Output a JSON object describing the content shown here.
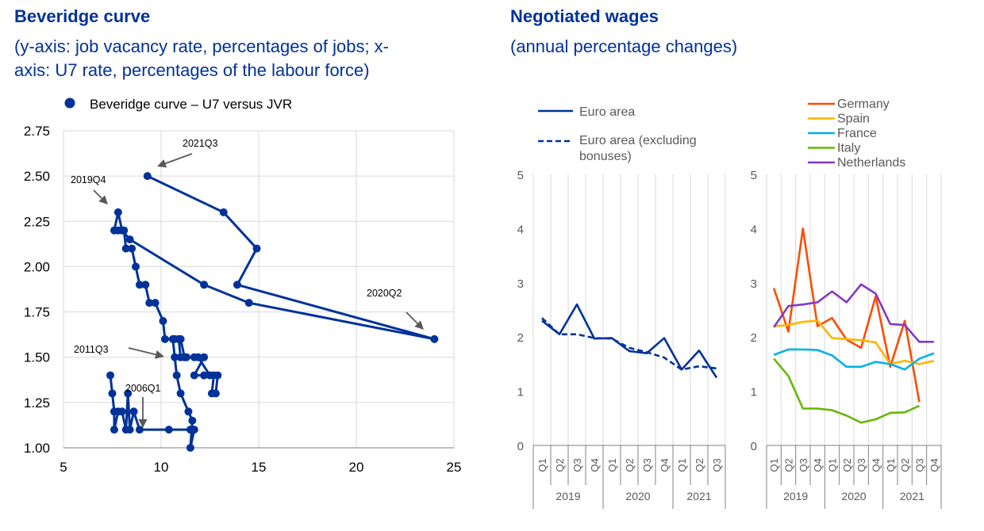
{
  "left_panel": {
    "title": "Beveridge curve",
    "subtitle_line1": "(y-axis: job vacancy rate, percentages of jobs; x-",
    "subtitle_line2": "axis: U7 rate, percentages of the labour force)"
  },
  "right_panel": {
    "title": "Negotiated wages",
    "subtitle": "(annual percentage changes)"
  },
  "colors": {
    "navy": "#003299",
    "germany": "#ff4b00",
    "spain": "#ffb400",
    "france": "#00b1ea",
    "italy": "#65b800",
    "netherlands": "#8139c6",
    "grid": "#d9d9d9",
    "axis": "#808080",
    "arrow": "#595959"
  },
  "chart_data": [
    {
      "type": "scatter",
      "title": "Beveridge curve",
      "legend": [
        "Beveridge curve – U7 versus JVR"
      ],
      "legend_position": "top-left",
      "xlim": [
        5,
        25
      ],
      "ylim": [
        1.0,
        2.75
      ],
      "x_ticks": [
        "5",
        "10",
        "15",
        "20",
        "25"
      ],
      "y_ticks": [
        "1.00",
        "1.25",
        "1.50",
        "1.75",
        "2.00",
        "2.25",
        "2.50",
        "2.75"
      ],
      "grid": true,
      "series": [
        {
          "name": "Beveridge curve – U7 versus JVR",
          "points": [
            [
              7.4,
              1.4
            ],
            [
              7.5,
              1.3
            ],
            [
              7.6,
              1.2
            ],
            [
              7.6,
              1.1
            ],
            [
              7.8,
              1.2
            ],
            [
              8.0,
              1.2
            ],
            [
              8.2,
              1.1
            ],
            [
              8.3,
              1.3
            ],
            [
              8.4,
              1.1
            ],
            [
              8.6,
              1.2
            ],
            [
              8.9,
              1.1
            ],
            [
              10.4,
              1.1
            ],
            [
              11.5,
              1.1
            ],
            [
              11.7,
              1.1
            ],
            [
              11.5,
              1.0
            ],
            [
              11.6,
              1.15
            ],
            [
              11.4,
              1.2
            ],
            [
              11.0,
              1.3
            ],
            [
              10.8,
              1.4
            ],
            [
              10.7,
              1.5
            ],
            [
              10.6,
              1.6
            ],
            [
              10.9,
              1.6
            ],
            [
              11.0,
              1.5
            ],
            [
              11.3,
              1.5
            ],
            [
              11.7,
              1.5
            ],
            [
              12.2,
              1.5
            ],
            [
              11.7,
              1.4
            ],
            [
              12.2,
              1.4
            ],
            [
              12.7,
              1.4
            ],
            [
              12.6,
              1.3
            ],
            [
              12.8,
              1.3
            ],
            [
              12.9,
              1.4
            ],
            [
              12.5,
              1.4
            ],
            [
              11.9,
              1.5
            ],
            [
              11.2,
              1.5
            ],
            [
              11.0,
              1.6
            ],
            [
              10.7,
              1.6
            ],
            [
              10.2,
              1.6
            ],
            [
              10.1,
              1.7
            ],
            [
              9.7,
              1.8
            ],
            [
              9.4,
              1.8
            ],
            [
              9.2,
              1.9
            ],
            [
              8.9,
              1.9
            ],
            [
              8.7,
              2.0
            ],
            [
              8.5,
              2.1
            ],
            [
              8.2,
              2.1
            ],
            [
              8.1,
              2.2
            ],
            [
              7.8,
              2.2
            ],
            [
              7.6,
              2.2
            ],
            [
              7.8,
              2.3
            ],
            [
              8.0,
              2.2
            ],
            [
              8.4,
              2.15
            ],
            [
              12.2,
              1.9
            ],
            [
              14.5,
              1.8
            ],
            [
              24.0,
              1.6
            ],
            [
              13.9,
              1.9
            ],
            [
              14.9,
              2.1
            ],
            [
              13.2,
              2.3
            ],
            [
              9.3,
              2.5
            ]
          ]
        }
      ],
      "annotations": [
        "2021Q3",
        "2019Q4",
        "2020Q2",
        "2011Q3",
        "2006Q1"
      ]
    },
    {
      "type": "line",
      "title": "Negotiated wages",
      "ylim": [
        0,
        5
      ],
      "y_ticks": [
        "0",
        "1",
        "2",
        "3",
        "4",
        "5"
      ],
      "categories": [
        "Q1",
        "Q2",
        "Q3",
        "Q4",
        "Q1",
        "Q2",
        "Q3",
        "Q4",
        "Q1",
        "Q2",
        "Q3"
      ],
      "years": [
        "2019",
        "2020",
        "2021"
      ],
      "series": [
        {
          "name": "Euro area",
          "style": "solid",
          "values": [
            2.3,
            2.05,
            2.6,
            1.97,
            1.98,
            1.74,
            1.7,
            1.98,
            1.4,
            1.75,
            1.25
          ]
        },
        {
          "name": "Euro area (excluding bonuses)",
          "style": "dashed",
          "values": [
            2.35,
            2.05,
            2.05,
            1.98,
            1.97,
            1.8,
            1.72,
            1.62,
            1.4,
            1.46,
            1.42
          ]
        }
      ]
    },
    {
      "type": "line",
      "ylim": [
        0,
        5
      ],
      "y_ticks": [
        "0",
        "1",
        "2",
        "3",
        "4",
        "5"
      ],
      "categories": [
        "Q1",
        "Q2",
        "Q3",
        "Q4",
        "Q1",
        "Q2",
        "Q3",
        "Q4",
        "Q1",
        "Q2",
        "Q3",
        "Q4"
      ],
      "years": [
        "2019",
        "2020",
        "2021"
      ],
      "series": [
        {
          "name": "Germany",
          "values": [
            2.9,
            2.1,
            4.0,
            2.2,
            2.35,
            1.95,
            1.8,
            2.75,
            1.45,
            2.3,
            0.8,
            null
          ]
        },
        {
          "name": "Spain",
          "values": [
            2.2,
            2.22,
            2.28,
            2.3,
            1.98,
            1.96,
            1.94,
            1.9,
            1.5,
            1.56,
            1.5,
            1.56
          ]
        },
        {
          "name": "France",
          "values": [
            1.67,
            1.77,
            1.77,
            1.76,
            1.66,
            1.45,
            1.45,
            1.54,
            1.5,
            1.4,
            1.6,
            1.7
          ]
        },
        {
          "name": "Italy",
          "values": [
            1.6,
            1.28,
            0.68,
            0.68,
            0.65,
            0.55,
            0.42,
            0.48,
            0.6,
            0.61,
            0.73,
            null
          ]
        },
        {
          "name": "Netherlands",
          "values": [
            2.18,
            2.57,
            2.6,
            2.64,
            2.84,
            2.64,
            2.97,
            2.8,
            2.24,
            2.22,
            1.91,
            1.91
          ]
        }
      ]
    }
  ]
}
